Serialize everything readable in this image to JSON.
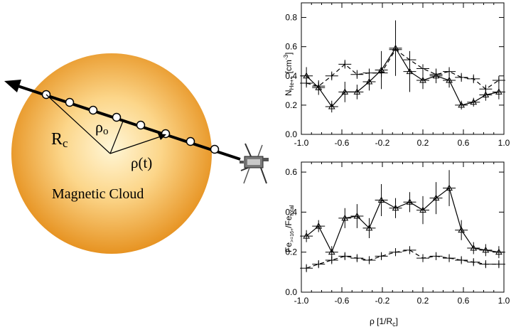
{
  "diagram": {
    "cloud_label": "Magnetic Cloud",
    "radius_label": "R",
    "radius_sub": "c",
    "impact_label": "ρ",
    "impact_sub": "o",
    "position_label": "ρ(t)",
    "colors": {
      "cloud_center": "#fff4cf",
      "cloud_edge": "#e8951d",
      "trajectory": "#000000"
    },
    "icons": {
      "spacecraft": "spacecraft-icon"
    }
  },
  "chart_data": [
    {
      "type": "line",
      "ylabel_main": "N",
      "ylabel_sub": "He++",
      "ylabel_unit": " [cm",
      "ylabel_exp": "-3",
      "ylabel_close": "]",
      "xlim": [
        -1.0,
        1.0
      ],
      "ylim": [
        0.0,
        0.9
      ],
      "xticks": [
        "-1.0",
        "-0.6",
        "-0.2",
        "0.2",
        "0.6",
        "1.0"
      ],
      "yticks": [
        "0.0",
        "0.2",
        "0.4",
        "0.6",
        "0.8"
      ],
      "series": [
        {
          "style": "solid-triangles",
          "x": [
            -0.95,
            -0.83,
            -0.7,
            -0.57,
            -0.45,
            -0.33,
            -0.21,
            -0.07,
            0.07,
            0.2,
            0.33,
            0.46,
            0.58,
            0.7,
            0.82,
            0.95
          ],
          "y": [
            0.4,
            0.32,
            0.19,
            0.29,
            0.29,
            0.36,
            0.44,
            0.59,
            0.43,
            0.37,
            0.4,
            0.37,
            0.2,
            0.22,
            0.27,
            0.29
          ],
          "err": [
            0.06,
            0.05,
            0.04,
            0.07,
            0.05,
            0.06,
            0.13,
            0.19,
            0.14,
            0.06,
            0.05,
            0.05,
            0.03,
            0.03,
            0.04,
            0.05
          ]
        },
        {
          "style": "dashed-crosses",
          "x": [
            -0.95,
            -0.83,
            -0.7,
            -0.57,
            -0.45,
            -0.33,
            -0.21,
            -0.07,
            0.07,
            0.2,
            0.33,
            0.46,
            0.58,
            0.7,
            0.82,
            0.95
          ],
          "y": [
            0.35,
            0.33,
            0.4,
            0.48,
            0.41,
            0.42,
            0.42,
            0.58,
            0.51,
            0.45,
            0.41,
            0.43,
            0.39,
            0.38,
            0.31,
            0.37
          ],
          "err": [
            0.03,
            0.03,
            0.03,
            0.03,
            0.03,
            0.03,
            0.03,
            0.03,
            0.03,
            0.03,
            0.03,
            0.03,
            0.03,
            0.03,
            0.03,
            0.03
          ]
        }
      ]
    },
    {
      "type": "line",
      "ylabel_main": "Fe",
      "ylabel_sub": ">=16+",
      "ylabel_mid": "/Fe",
      "ylabel_sub2": "total",
      "xlabel": "ρ [1/R",
      "xlabel_sub": "c",
      "xlabel_close": "]",
      "xlim": [
        -1.0,
        1.0
      ],
      "ylim": [
        0.0,
        0.65
      ],
      "xticks": [
        "-1.0",
        "-0.6",
        "-0.2",
        "0.2",
        "0.6",
        "1.0"
      ],
      "yticks": [
        "0.0",
        "0.2",
        "0.4",
        "0.6"
      ],
      "series": [
        {
          "style": "solid-triangles",
          "x": [
            -0.95,
            -0.83,
            -0.7,
            -0.57,
            -0.45,
            -0.33,
            -0.21,
            -0.07,
            0.07,
            0.2,
            0.33,
            0.46,
            0.58,
            0.7,
            0.82,
            0.95
          ],
          "y": [
            0.28,
            0.33,
            0.2,
            0.37,
            0.38,
            0.32,
            0.46,
            0.42,
            0.45,
            0.41,
            0.47,
            0.52,
            0.31,
            0.22,
            0.21,
            0.2
          ],
          "err": [
            0.03,
            0.03,
            0.03,
            0.05,
            0.06,
            0.05,
            0.08,
            0.05,
            0.05,
            0.07,
            0.08,
            0.09,
            0.05,
            0.03,
            0.03,
            0.03
          ]
        },
        {
          "style": "dashed-crosses",
          "x": [
            -0.95,
            -0.83,
            -0.7,
            -0.57,
            -0.45,
            -0.33,
            -0.21,
            -0.07,
            0.07,
            0.2,
            0.33,
            0.46,
            0.58,
            0.7,
            0.82,
            0.95
          ],
          "y": [
            0.12,
            0.14,
            0.16,
            0.18,
            0.17,
            0.16,
            0.18,
            0.2,
            0.21,
            0.17,
            0.18,
            0.17,
            0.16,
            0.15,
            0.14,
            0.14
          ],
          "err": [
            0.02,
            0.02,
            0.02,
            0.02,
            0.02,
            0.02,
            0.02,
            0.02,
            0.02,
            0.02,
            0.02,
            0.02,
            0.02,
            0.02,
            0.02,
            0.02
          ]
        }
      ]
    }
  ]
}
